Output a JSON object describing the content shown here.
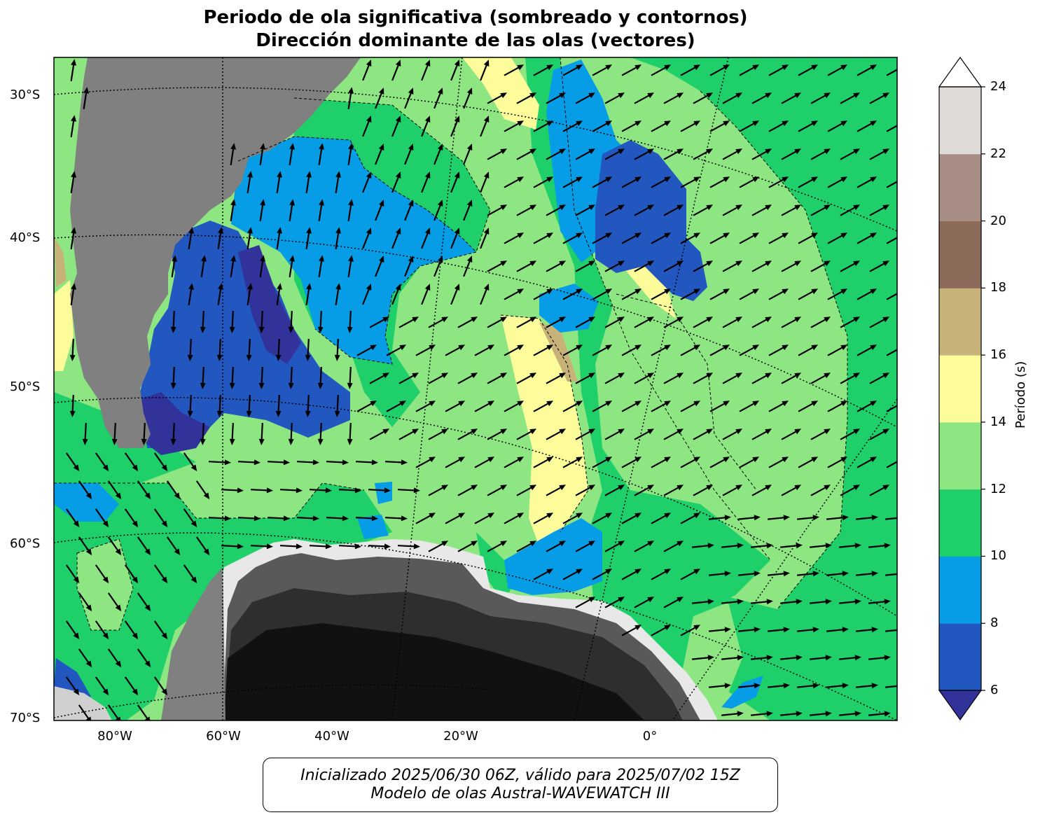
{
  "title": {
    "line1": "Periodo de ola significativa (sombreado y contornos)",
    "line2": "Dirección dominante de las olas (vectores)"
  },
  "map": {
    "lat_labels": [
      "30°S",
      "40°S",
      "50°S",
      "60°S",
      "70°S"
    ],
    "lon_labels": [
      "80°W",
      "60°W",
      "40°W",
      "20°W",
      "0°"
    ],
    "colors": {
      "land": "#808080",
      "ice_dark": "#111111",
      "ice_mid": "#2e2e2e",
      "ice_light": "#595959",
      "vector": "#000000"
    }
  },
  "colorbar": {
    "label": "Período (s)",
    "ticks": [
      "6",
      "8",
      "10",
      "12",
      "14",
      "16",
      "18",
      "20",
      "22",
      "24"
    ],
    "levels": [
      {
        "range": "6-8",
        "color": "#2257c0"
      },
      {
        "range": "8-10",
        "color": "#069de6"
      },
      {
        "range": "10-12",
        "color": "#1ecf6a"
      },
      {
        "range": "12-14",
        "color": "#8de682"
      },
      {
        "range": "14-16",
        "color": "#fdfc9a"
      },
      {
        "range": "16-18",
        "color": "#c7b27a"
      },
      {
        "range": "18-20",
        "color": "#8c6b5a"
      },
      {
        "range": "20-22",
        "color": "#a78d84"
      },
      {
        "range": "22-24",
        "color": "#e0dad8"
      }
    ],
    "under_color": "#31329a",
    "over_color": "#ffffff"
  },
  "footer": {
    "line1": "Inicializado 2025/06/30 06Z, válido para 2025/07/02 15Z",
    "line2": "Modelo de olas Austral-WAVEWATCH III"
  }
}
